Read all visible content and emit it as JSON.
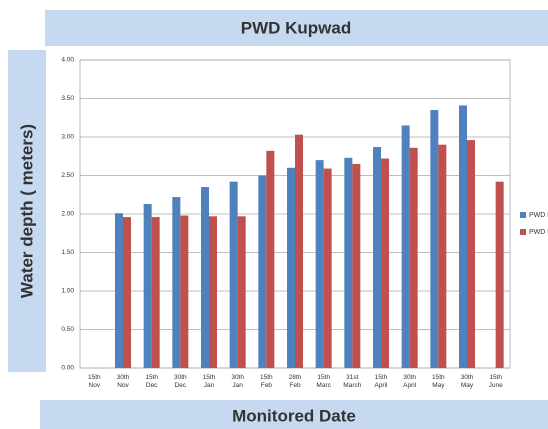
{
  "chart_data": {
    "type": "bar",
    "title": "PWD Kupwad",
    "ylabel": "Water depth ( meters)",
    "xlabel": "Monitored Date",
    "categories": [
      "15th\nNov",
      "30th\nNov",
      "15th\nDec",
      "30th\nDec",
      "15th\nJan",
      "30th\nJan",
      "15th\nFeb",
      "28th\nFeb",
      "15th\nMarc",
      "31st\nMarch",
      "15th\nApril",
      "30th\nApril",
      "15th\nMay",
      "30th\nMay",
      "15th\nJune"
    ],
    "series": [
      {
        "name": "PWD K",
        "color": "#4f81bd",
        "values": [
          null,
          2.01,
          2.13,
          2.22,
          2.35,
          2.42,
          2.5,
          2.6,
          2.7,
          2.73,
          2.87,
          3.15,
          3.35,
          3.41,
          null
        ]
      },
      {
        "name": "PWD K",
        "color": "#c0504d",
        "values": [
          null,
          1.96,
          1.96,
          1.98,
          1.97,
          1.97,
          2.82,
          3.03,
          2.59,
          2.65,
          2.72,
          2.86,
          2.9,
          2.96,
          2.42
        ]
      }
    ],
    "ylim": [
      0,
      4
    ],
    "yticks": [
      {
        "value": 0,
        "label": "0.00"
      },
      {
        "value": 0.5,
        "label": "0.50"
      },
      {
        "value": 1,
        "label": "1.00"
      },
      {
        "value": 1.5,
        "label": "1.50"
      },
      {
        "value": 2,
        "label": "2.00"
      },
      {
        "value": 2.5,
        "label": "2.50"
      },
      {
        "value": 3,
        "label": "3.00"
      },
      {
        "value": 3.5,
        "label": "3.50"
      },
      {
        "value": 4,
        "label": "4.00"
      }
    ],
    "grid": true,
    "legend": "right"
  }
}
